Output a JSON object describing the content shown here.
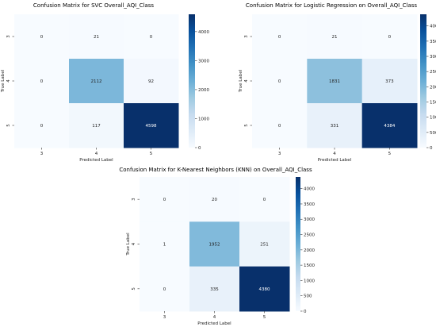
{
  "chart_data": [
    {
      "type": "heatmap",
      "title": "Confusion Matrix for SVC Overall_AQI_Class",
      "xlabel": "Predicted Label",
      "ylabel": "True Label",
      "x_categories": [
        "3",
        "4",
        "5"
      ],
      "y_categories": [
        "3",
        "4",
        "5"
      ],
      "values": [
        [
          0,
          21,
          0
        ],
        [
          0,
          2112,
          92
        ],
        [
          0,
          117,
          4598
        ]
      ],
      "colorbar": {
        "ticks": [
          0,
          1000,
          2000,
          3000,
          4000
        ],
        "range": [
          0,
          4598
        ]
      }
    },
    {
      "type": "heatmap",
      "title": "Confusion Matrix for  Logistic Regression on Overall_AQI_Class",
      "xlabel": "Predicted Label",
      "ylabel": "True Label",
      "x_categories": [
        "3",
        "4",
        "5"
      ],
      "y_categories": [
        "3",
        "4",
        "5"
      ],
      "values": [
        [
          0,
          21,
          0
        ],
        [
          0,
          1831,
          373
        ],
        [
          0,
          331,
          4384
        ]
      ],
      "colorbar": {
        "ticks": [
          0,
          500,
          1000,
          1500,
          2000,
          2500,
          3000,
          3500,
          4000
        ],
        "range": [
          0,
          4384
        ]
      }
    },
    {
      "type": "heatmap",
      "title": "Confusion Matrix for K-Nearest Neighbors (KNN) on Overall_AQI_Class",
      "xlabel": "Predicted Label",
      "ylabel": "True Label",
      "x_categories": [
        "3",
        "4",
        "5"
      ],
      "y_categories": [
        "3",
        "4",
        "5"
      ],
      "values": [
        [
          0,
          20,
          0
        ],
        [
          1,
          1952,
          251
        ],
        [
          0,
          335,
          4380
        ]
      ],
      "colorbar": {
        "ticks": [
          0,
          500,
          1000,
          1500,
          2000,
          2500,
          3000,
          3500,
          4000
        ],
        "range": [
          0,
          4380
        ]
      }
    }
  ],
  "colors": {
    "colormap": "Blues",
    "low": "#f7fbff",
    "high": "#08306b",
    "annotation_light": "#ffffff",
    "annotation_dark": "#222222"
  }
}
